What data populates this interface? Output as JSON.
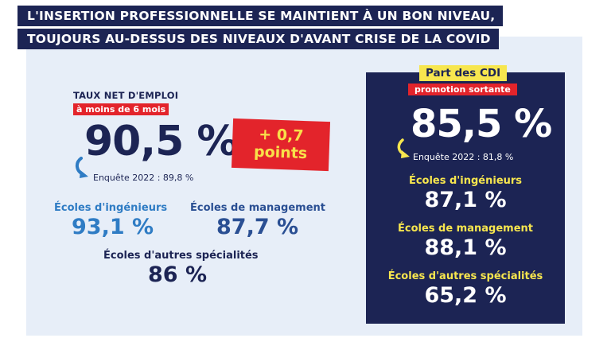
{
  "headline": {
    "line1": "L'INSERTION PROFESSIONNELLE SE MAINTIENT À UN BON NIVEAU,",
    "line2": "TOUJOURS AU-DESSUS DES NIVEAUX D'AVANT CRISE DE LA COVID"
  },
  "left": {
    "title": "TAUX NET D'EMPLOI",
    "subtitle": "à moins de 6 mois",
    "rate": "90,5 %",
    "change_line1": "+ 0,7",
    "change_line2": "points",
    "survey": "Enquête 2022 : 89,8 %",
    "categories": [
      {
        "label": "Écoles d'ingénieurs",
        "value": "93,1 %"
      },
      {
        "label": "Écoles de management",
        "value": "87,7 %"
      },
      {
        "label": "Écoles d'autres spécialités",
        "value": "86 %"
      }
    ]
  },
  "right": {
    "title": "Part des CDI",
    "subtitle": "promotion sortante",
    "rate": "85,5 %",
    "survey": "Enquête 2022 : 81,8 %",
    "categories": [
      {
        "label": "Écoles d'ingénieurs",
        "value": "87,1 %"
      },
      {
        "label": "Écoles de management",
        "value": "88,1 %"
      },
      {
        "label": "Écoles d'autres spécialités",
        "value": "65,2 %"
      }
    ]
  },
  "colors": {
    "navy": "#1c2454",
    "red": "#e3242b",
    "yellow": "#f7e64e",
    "light_blue": "#2f7cc4",
    "mid_blue": "#2a4f93",
    "panel_bg": "#e7eef8"
  },
  "icons": [
    "curved-arrow-icon"
  ]
}
